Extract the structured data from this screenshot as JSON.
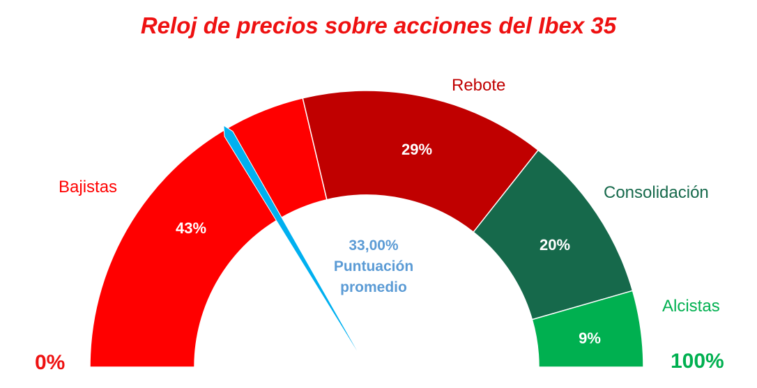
{
  "title": "Reloj de precios sobre acciones del Ibex 35",
  "chart_data": {
    "type": "gauge",
    "title": "Reloj de precios sobre acciones del Ibex 35",
    "range": [
      0,
      100
    ],
    "min_label": "0%",
    "max_label": "100%",
    "segments": [
      {
        "name": "Bajistas",
        "value": 43,
        "label": "43%",
        "color": "#ff0000"
      },
      {
        "name": "Rebote",
        "value": 29,
        "label": "29%",
        "color": "#c00000"
      },
      {
        "name": "Consolidación",
        "value": 20,
        "label": "20%",
        "color": "#16694b"
      },
      {
        "name": "Alcistas",
        "value": 9,
        "label": "9%",
        "color": "#00b050"
      }
    ],
    "pointer": {
      "value": 33.0,
      "label": "33,00%",
      "caption_line1": "Puntuación",
      "caption_line2": "promedio",
      "color": "#00b0f0"
    }
  },
  "colors": {
    "title": "#ee1111",
    "score_text": "#5b9bd5",
    "min_label": "#ee1111",
    "max_label": "#00b050"
  }
}
